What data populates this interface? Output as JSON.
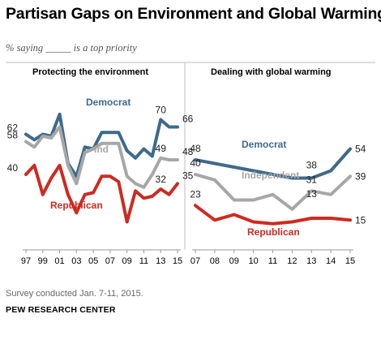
{
  "title": "Partisan Gaps on Environment and Global Warming",
  "subtitle": "% saying _____ is a top priority",
  "note": "Survey conducted Jan. 7-11, 2015.",
  "source": "PEW RESEARCH CENTER",
  "colors": {
    "democrat": "#3e6a8a",
    "independent": "#a7a7a7",
    "republican": "#cc2b22"
  },
  "chart_data": [
    {
      "type": "line",
      "title": "Protecting the environment",
      "x": [
        1997,
        1998,
        1999,
        2000,
        2001,
        2002,
        2003,
        2004,
        2005,
        2006,
        2007,
        2008,
        2009,
        2010,
        2011,
        2012,
        2013,
        2014,
        2015
      ],
      "x_tick_labels": [
        "97",
        "99",
        "01",
        "03",
        "05",
        "07",
        "09",
        "11",
        "13",
        "15"
      ],
      "ylim": [
        0,
        100
      ],
      "series": [
        {
          "name": "Democrat",
          "color": "#3e6a8a",
          "values": [
            62,
            59,
            62,
            61,
            73,
            46,
            39,
            55,
            54,
            63,
            63,
            63,
            53,
            49,
            54,
            50,
            70,
            66,
            66
          ],
          "end_labels": {
            "start": "62",
            "peak": "70",
            "end": "66"
          }
        },
        {
          "name": "Ind",
          "color": "#a7a7a7",
          "values": [
            58,
            55,
            61,
            60,
            66,
            45,
            35,
            52,
            54,
            57,
            57,
            57,
            39,
            35,
            33,
            40,
            49,
            48,
            48
          ],
          "end_labels": {
            "start": "58",
            "peak": "49",
            "end": "48"
          }
        },
        {
          "name": "Republican",
          "color": "#cc2b22",
          "values": [
            40,
            45,
            29,
            38,
            45,
            29,
            19,
            29,
            30,
            39,
            39,
            36,
            14,
            31,
            27,
            28,
            32,
            29,
            35
          ],
          "end_labels": {
            "start": "40",
            "peak": "32",
            "end": "35"
          }
        }
      ]
    },
    {
      "type": "line",
      "title": "Dealing with global warming",
      "x": [
        2007,
        2008,
        2009,
        2010,
        2011,
        2012,
        2013,
        2014,
        2015
      ],
      "x_tick_labels": [
        "07",
        "08",
        "09",
        "10",
        "11",
        "12",
        "13",
        "14",
        "15"
      ],
      "ylim": [
        0,
        100
      ],
      "series": [
        {
          "name": "Democrat",
          "color": "#3e6a8a",
          "values": [
            48,
            46,
            44,
            42,
            40,
            38,
            38,
            42,
            54
          ],
          "end_labels": {
            "start": "48",
            "peak": "38",
            "end": "54"
          }
        },
        {
          "name": "Independent",
          "color": "#a7a7a7",
          "values": [
            40,
            37,
            26,
            26,
            29,
            21,
            31,
            29,
            39
          ],
          "end_labels": {
            "start": "40",
            "peak": "31",
            "end": "39"
          }
        },
        {
          "name": "Republican",
          "color": "#cc2b22",
          "values": [
            23,
            15,
            18,
            14,
            13,
            14,
            16,
            16,
            15
          ],
          "end_labels": {
            "start": "23",
            "peak": "13",
            "end": "15"
          }
        }
      ]
    }
  ]
}
